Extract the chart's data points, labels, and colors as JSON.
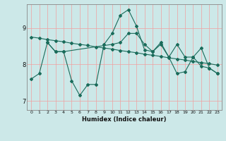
{
  "title": "",
  "xlabel": "Humidex (Indice chaleur)",
  "bg_color": "#cce8e8",
  "grid_color": "#f0a0a0",
  "line_color": "#1a6b5a",
  "xlim": [
    -0.5,
    23.5
  ],
  "ylim": [
    6.75,
    9.65
  ],
  "yticks": [
    7,
    8,
    9
  ],
  "xticks": [
    0,
    1,
    2,
    3,
    4,
    5,
    6,
    7,
    8,
    9,
    10,
    11,
    12,
    13,
    14,
    15,
    16,
    17,
    18,
    19,
    20,
    21,
    22,
    23
  ],
  "series": [
    {
      "x": [
        0,
        1,
        2,
        3,
        4,
        5,
        6,
        7,
        8,
        9,
        10,
        11,
        12,
        13,
        14,
        15,
        16,
        17,
        18,
        19,
        20,
        21,
        22,
        23
      ],
      "y": [
        7.6,
        7.75,
        8.6,
        8.35,
        8.35,
        7.55,
        7.15,
        7.45,
        7.45,
        8.55,
        8.85,
        9.35,
        9.5,
        9.05,
        8.4,
        8.35,
        8.6,
        8.2,
        7.75,
        7.8,
        8.2,
        7.95,
        7.9,
        7.75
      ]
    },
    {
      "x": [
        0,
        1,
        2,
        3,
        4,
        5,
        6,
        7,
        8,
        9,
        10,
        11,
        12,
        13,
        14,
        15,
        16,
        17,
        18,
        19,
        20,
        21,
        22,
        23
      ],
      "y": [
        8.75,
        8.72,
        8.68,
        8.65,
        8.62,
        8.58,
        8.55,
        8.52,
        8.48,
        8.45,
        8.42,
        8.38,
        8.35,
        8.32,
        8.28,
        8.25,
        8.22,
        8.18,
        8.15,
        8.12,
        8.08,
        8.05,
        8.02,
        7.98
      ]
    },
    {
      "x": [
        2,
        3,
        4,
        10,
        11,
        12,
        13,
        14,
        15,
        16,
        17,
        18,
        19,
        20,
        21,
        22,
        23
      ],
      "y": [
        8.6,
        8.35,
        8.35,
        8.55,
        8.6,
        8.85,
        8.85,
        8.55,
        8.35,
        8.55,
        8.2,
        8.55,
        8.2,
        8.2,
        8.45,
        7.9,
        7.75
      ]
    }
  ]
}
